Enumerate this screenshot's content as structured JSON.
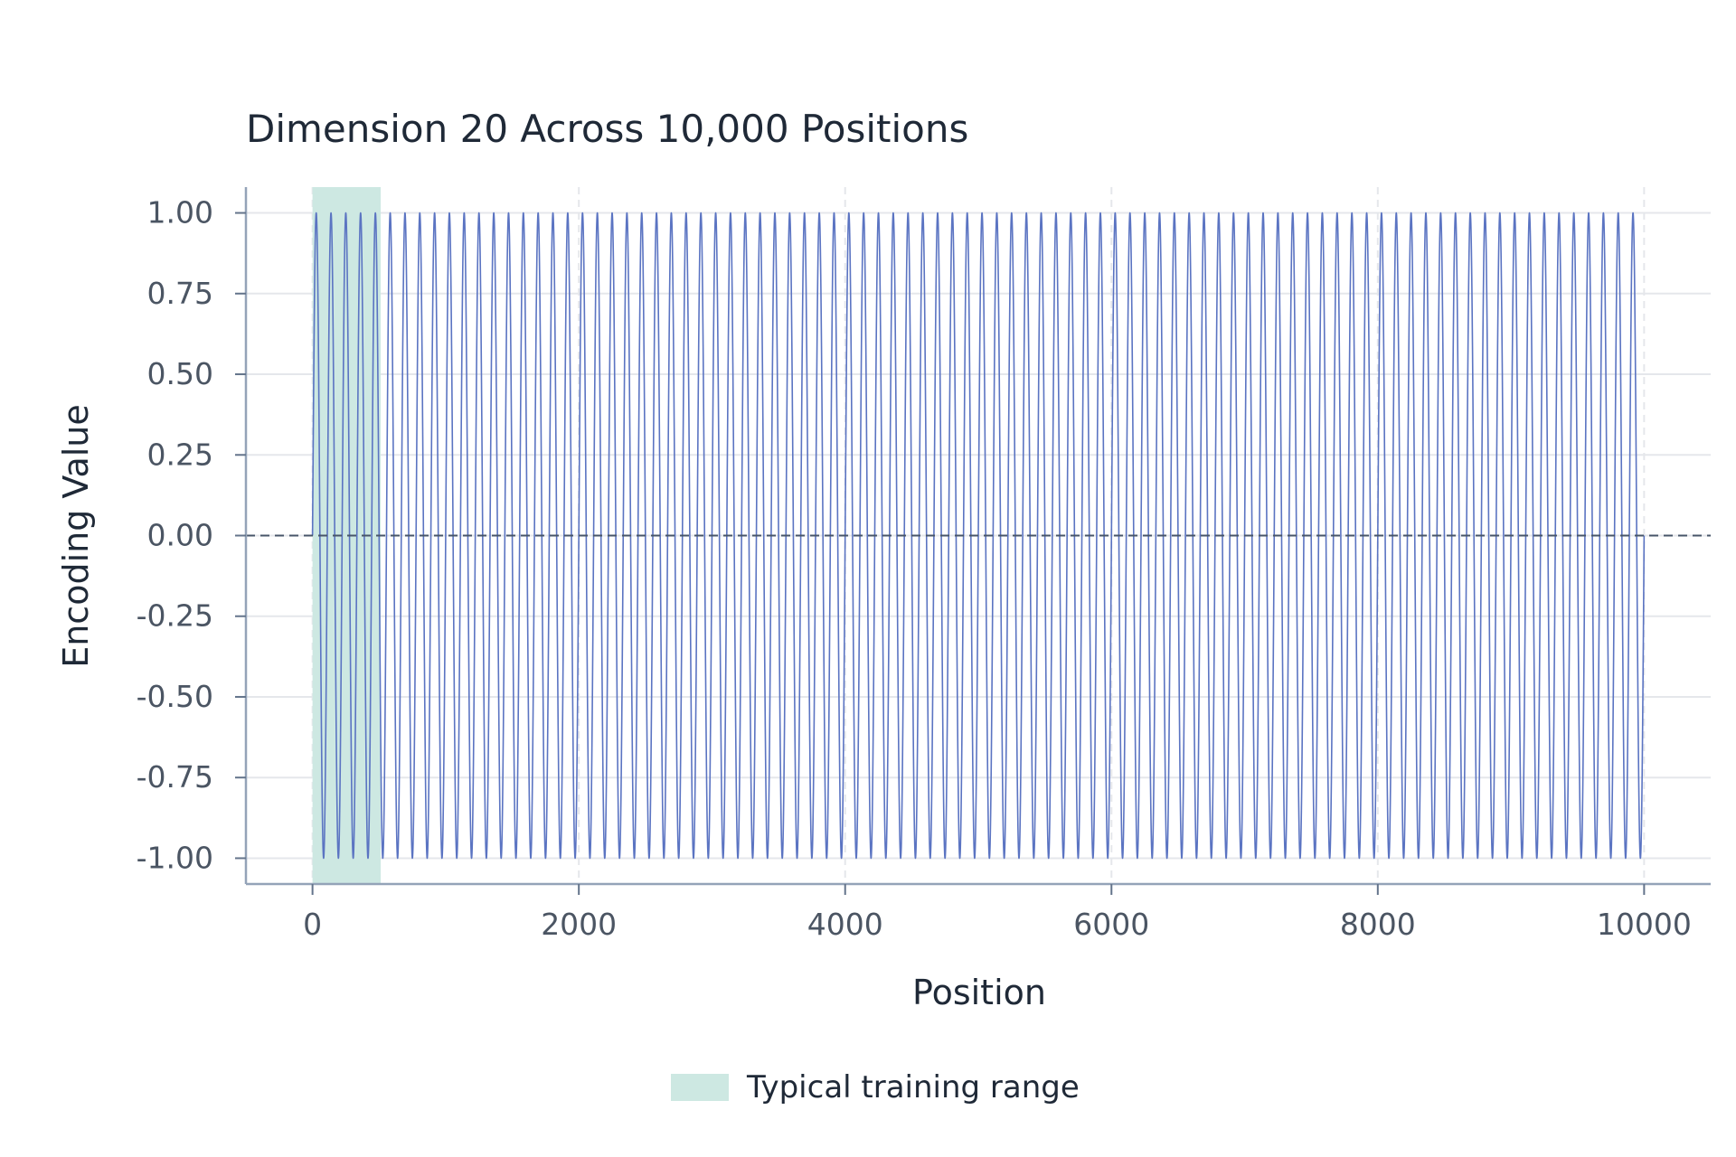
{
  "chart_data": {
    "type": "line",
    "title": "Dimension 20 Across 10,000 Positions",
    "xlabel": "Position",
    "ylabel": "Encoding Value",
    "xlim": [
      -500,
      10500
    ],
    "ylim": [
      -1.08,
      1.08
    ],
    "x_ticks": [
      0,
      2000,
      4000,
      6000,
      8000,
      10000
    ],
    "x_tick_labels": [
      "0",
      "2000",
      "4000",
      "6000",
      "8000",
      "10000"
    ],
    "y_ticks": [
      1.0,
      0.75,
      0.5,
      0.25,
      0.0,
      -0.25,
      -0.5,
      -0.75,
      -1.0
    ],
    "y_tick_labels": [
      "1.00",
      "0.75",
      "0.50",
      "0.25",
      "0.00",
      "-0.25",
      "-0.50",
      "-0.75",
      "-1.00"
    ],
    "grid": true,
    "series": {
      "function": "sin",
      "x_range": [
        0,
        10000
      ],
      "cycles": 90,
      "color": "#5b74c2"
    },
    "reference_line": {
      "y": 0.0,
      "style": "dashed",
      "color": "#475569"
    },
    "shaded_region": {
      "x_range": [
        0,
        512
      ],
      "color": "#cde8e2"
    },
    "legend": {
      "placement": "bottom-center",
      "entries": [
        {
          "label": "Typical training range",
          "color": "#cde8e2"
        }
      ]
    }
  }
}
